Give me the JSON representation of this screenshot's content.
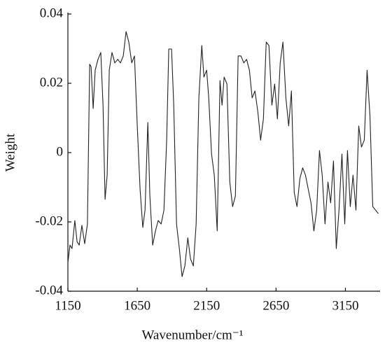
{
  "chart_data": {
    "type": "line",
    "xlabel": "Wavenumber/cm⁻¹",
    "ylabel": "Weight",
    "color": "#222222",
    "x": [
      1150,
      1165,
      1180,
      1200,
      1216,
      1231,
      1251,
      1271,
      1291,
      1307,
      1317,
      1332,
      1347,
      1367,
      1387,
      1403,
      1418,
      1433,
      1448,
      1468,
      1488,
      1509,
      1529,
      1549,
      1569,
      1589,
      1610,
      1630,
      1650,
      1670,
      1690,
      1706,
      1726,
      1741,
      1761,
      1781,
      1801,
      1822,
      1842,
      1862,
      1877,
      1897,
      1913,
      1933,
      1953,
      1973,
      1993,
      2014,
      2034,
      2054,
      2074,
      2094,
      2115,
      2130,
      2150,
      2165,
      2185,
      2205,
      2226,
      2246,
      2261,
      2276,
      2296,
      2317,
      2337,
      2357,
      2377,
      2397,
      2418,
      2438,
      2458,
      2478,
      2498,
      2519,
      2539,
      2559,
      2579,
      2599,
      2620,
      2640,
      2660,
      2680,
      2700,
      2721,
      2741,
      2761,
      2781,
      2801,
      2822,
      2842,
      2862,
      2882,
      2902,
      2923,
      2943,
      2963,
      2983,
      3003,
      3024,
      3044,
      3064,
      3084,
      3104,
      3125,
      3145,
      3165,
      3185,
      3205,
      3226,
      3246,
      3266,
      3286,
      3306,
      3327,
      3347,
      3367,
      3387
    ],
    "values": [
      -0.0317,
      -0.0267,
      -0.0277,
      -0.0196,
      -0.0257,
      -0.0267,
      -0.021,
      -0.0263,
      -0.0206,
      0.0255,
      0.0248,
      0.0127,
      0.0238,
      0.0269,
      0.0289,
      0.0137,
      -0.0135,
      -0.0065,
      0.0238,
      0.0289,
      0.0259,
      0.0269,
      0.0259,
      0.0279,
      0.0349,
      0.0319,
      0.0259,
      0.0279,
      0.0077,
      -0.0105,
      -0.0216,
      -0.0166,
      0.0087,
      -0.0125,
      -0.0267,
      -0.0226,
      -0.0196,
      -0.0206,
      -0.0166,
      0.0036,
      0.0299,
      0.0299,
      0.0137,
      -0.0206,
      -0.0277,
      -0.0358,
      -0.0327,
      -0.0246,
      -0.0307,
      -0.0327,
      -0.0206,
      0.0158,
      0.0309,
      0.0218,
      0.0238,
      0.0158,
      -0.0004,
      -0.0065,
      -0.0226,
      0.0208,
      0.0137,
      0.0218,
      0.0198,
      -0.0085,
      -0.0156,
      -0.0125,
      0.0279,
      0.0279,
      0.0259,
      0.0269,
      0.0238,
      0.0158,
      0.0178,
      0.0117,
      0.0036,
      0.0097,
      0.0319,
      0.0309,
      0.0137,
      0.0198,
      0.0097,
      0.0259,
      0.0319,
      0.0158,
      0.0077,
      0.0178,
      -0.0115,
      -0.0156,
      -0.0075,
      -0.0044,
      -0.0065,
      -0.0105,
      -0.0145,
      -0.0226,
      -0.0166,
      0.0006,
      -0.0065,
      -0.0206,
      -0.0085,
      -0.0145,
      -0.0024,
      -0.0277,
      -0.0166,
      -0.0004,
      -0.0206,
      0.0006,
      -0.0156,
      -0.0065,
      -0.0166,
      0.0077,
      0.0016,
      0.0036,
      0.0238,
      0.0107,
      -0.0156,
      -0.0166,
      -0.0176
    ],
    "xlim": [
      1150,
      3400
    ],
    "xticks": [
      1150,
      1650,
      2150,
      2650,
      3150
    ],
    "ylim": [
      -0.04,
      0.04
    ],
    "yticks": [
      -0.04,
      -0.02,
      0,
      0.02,
      0.04
    ]
  }
}
